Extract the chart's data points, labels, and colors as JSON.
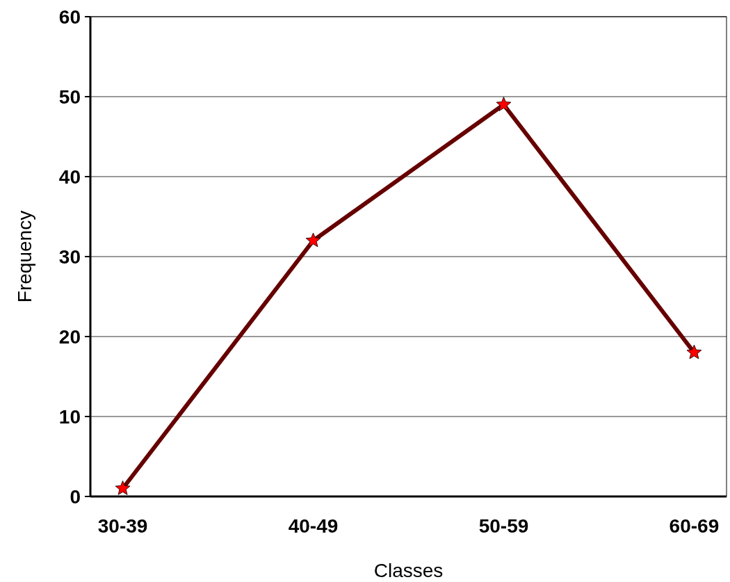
{
  "chart_data": {
    "type": "line",
    "xlabel": "Classes",
    "ylabel": "Frequency",
    "categories": [
      "30-39",
      "40-49",
      "50-59",
      "60-69"
    ],
    "series": [
      {
        "color": "#660000",
        "values": [
          1,
          32,
          49,
          18
        ]
      }
    ],
    "ylim": [
      0,
      60
    ],
    "yticks": [
      0,
      10,
      20,
      30,
      40,
      50,
      60
    ],
    "grid": "y",
    "marker": "star",
    "line_style": "solid"
  }
}
